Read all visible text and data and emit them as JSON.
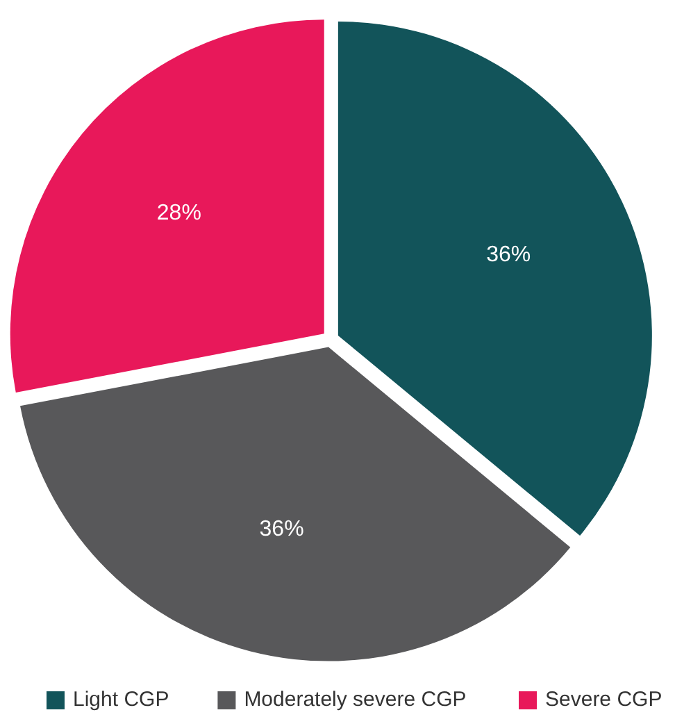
{
  "chart_data": {
    "type": "pie",
    "categories": [
      "Light CGP",
      "Moderately severe CGP",
      "Severe CGP"
    ],
    "values": [
      36,
      36,
      28
    ],
    "colors": [
      "#12545a",
      "#58585a",
      "#e8185a"
    ],
    "value_labels": [
      "36%",
      "36%",
      "28%"
    ],
    "legend": "bottom"
  }
}
